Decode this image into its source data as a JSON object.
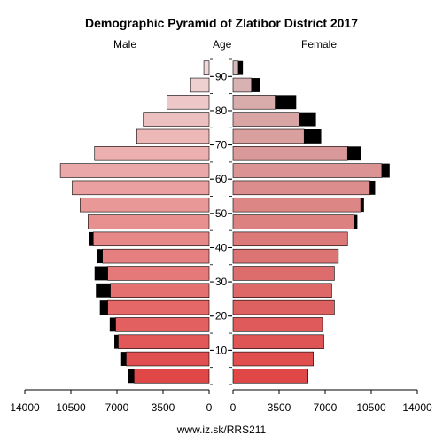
{
  "title": "Demographic Pyramid of Zlatibor District 2017",
  "left_header": "Male",
  "middle_header": "Age",
  "right_header": "Female",
  "footer": "www.iz.sk/RRS211",
  "chart_data": {
    "type": "bar",
    "orientation": "horizontal",
    "age_groups": [
      "0-4",
      "5-9",
      "10-14",
      "15-19",
      "20-24",
      "25-29",
      "30-34",
      "35-39",
      "40-44",
      "45-49",
      "50-54",
      "55-59",
      "60-64",
      "65-69",
      "70-74",
      "75-79",
      "80-84",
      "85-89",
      "90+"
    ],
    "age_ticks": [
      10,
      20,
      30,
      40,
      50,
      60,
      70,
      80,
      90
    ],
    "x_ticks": [
      14000,
      10500,
      7000,
      3500,
      0,
      3500,
      7000,
      10500,
      14000
    ],
    "xlim": [
      0,
      14000
    ],
    "male": [
      5700,
      6300,
      6900,
      7100,
      7700,
      7500,
      7700,
      8100,
      8800,
      9200,
      9800,
      10400,
      11300,
      8700,
      5500,
      5000,
      3200,
      1400,
      400
    ],
    "male_excess": [
      450,
      380,
      300,
      450,
      600,
      1100,
      1000,
      400,
      350,
      0,
      0,
      0,
      0,
      0,
      0,
      0,
      0,
      0,
      0
    ],
    "female": [
      5700,
      6100,
      6900,
      6800,
      7700,
      7500,
      7700,
      8000,
      8700,
      9200,
      9700,
      10400,
      11300,
      8700,
      5400,
      5000,
      3200,
      1400,
      400
    ],
    "female_excess": [
      0,
      0,
      0,
      0,
      0,
      0,
      0,
      0,
      0,
      250,
      250,
      400,
      600,
      1000,
      1300,
      1300,
      1600,
      650,
      350
    ],
    "colors": {
      "male_young": "#e04848",
      "male_old": "#f0d8d8",
      "female_young": "#e04848",
      "female_old": "#d8b8b8",
      "excess": "#000000"
    }
  }
}
